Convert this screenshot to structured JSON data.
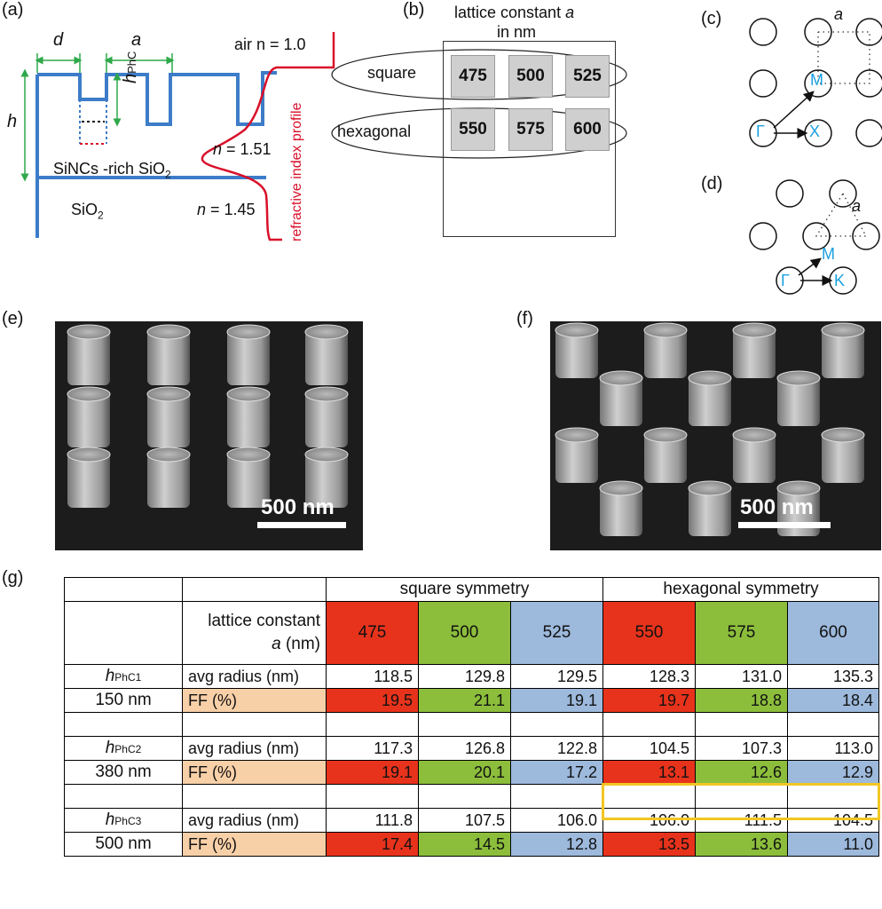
{
  "panel_labels": {
    "a": "(a)",
    "b": "(b)",
    "c": "(c)",
    "d": "(d)",
    "e": "(e)",
    "f": "(f)",
    "g": "(g)"
  },
  "panel_a": {
    "d": "d",
    "a": "a",
    "h": "h",
    "hphc": "h",
    "hphc_sub": "PhC",
    "air": "air n = 1.0",
    "n_mid": "n = 1.51",
    "n_mid_italic": "n",
    "n_mid_rest": " = 1.51",
    "n_low_italic": "n",
    "n_low_rest": " = 1.45",
    "sincs": "SiNCs -rich SiO",
    "sincs_sub": "2",
    "sio2": "SiO",
    "sio2_sub": "2",
    "profile": "refractive index profile"
  },
  "panel_b": {
    "title1": "lattice constant ",
    "title1_italic": "a",
    "title2": "in nm",
    "square": "square",
    "hexagonal": "hexagonal",
    "square_vals": [
      "475",
      "500",
      "525"
    ],
    "hex_vals": [
      "550",
      "575",
      "600"
    ]
  },
  "panel_c": {
    "a": "a",
    "M": "M",
    "G": "Γ",
    "X": "X"
  },
  "panel_d": {
    "a": "a",
    "M": "M",
    "G": "Γ",
    "K": "K"
  },
  "panel_e": {
    "scale": "500 nm"
  },
  "panel_f": {
    "scale": "500 nm"
  },
  "table": {
    "square_header": "square symmetry",
    "hex_header": "hexagonal symmetry",
    "lattice_label_1": "lattice constant",
    "lattice_label_2_italic": "a",
    "lattice_label_2_rest": " (nm)",
    "lattice_values": [
      "475",
      "500",
      "525",
      "550",
      "575",
      "600"
    ],
    "avg_label": "avg radius (nm)",
    "ff_label": "FF (%)",
    "rows": [
      {
        "h": "h",
        "sub": "PhC1",
        "thick": "150 nm",
        "avg": [
          "118.5",
          "129.8",
          "129.5",
          "128.3",
          "131.0",
          "135.3"
        ],
        "ff": [
          "19.5",
          "21.1",
          "19.1",
          "19.7",
          "18.8",
          "18.4"
        ]
      },
      {
        "h": "h",
        "sub": "PhC2",
        "thick": "380 nm",
        "avg": [
          "117.3",
          "126.8",
          "122.8",
          "104.5",
          "107.3",
          "113.0"
        ],
        "ff": [
          "19.1",
          "20.1",
          "17.2",
          "13.1",
          "12.6",
          "12.9"
        ]
      },
      {
        "h": "h",
        "sub": "PhC3",
        "thick": "500 nm",
        "avg": [
          "111.8",
          "107.5",
          "106.0",
          "106.0",
          "111.5",
          "104.5"
        ],
        "ff": [
          "17.4",
          "14.5",
          "12.8",
          "13.5",
          "13.6",
          "11.0"
        ]
      }
    ]
  },
  "colors": {
    "red": "#e8331c",
    "green": "#8cbe3c",
    "blue": "#9db9dc",
    "peach": "#f8d0a8",
    "line_blue": "#3d7cc9",
    "line_green": "#2ea84a",
    "line_red": "#d9102a",
    "cyan": "#1aa0e0",
    "highlight": "#f3c623"
  }
}
